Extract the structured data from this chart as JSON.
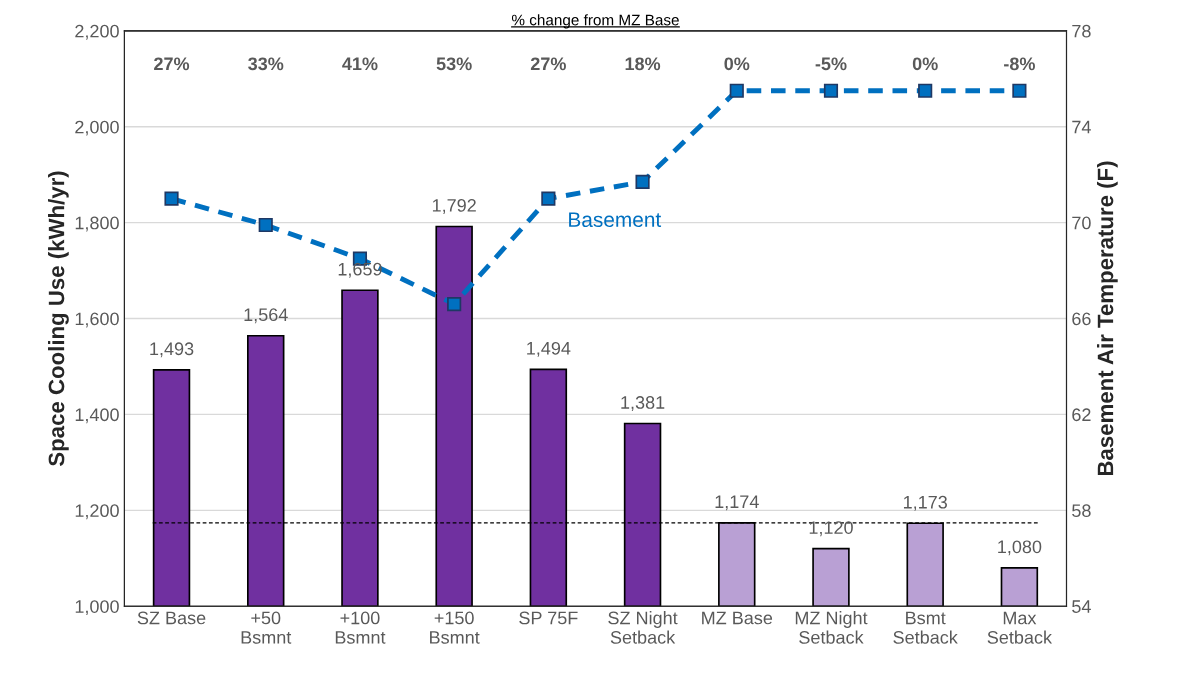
{
  "chart_data": {
    "type": "bar",
    "title": "% change from MZ Base",
    "categories": [
      "SZ Base",
      "+50\nBsmnt",
      "+100\nBsmnt",
      "+150\nBsmnt",
      "SP 75F",
      "SZ Night\nSetback",
      "MZ Base",
      "MZ Night\nSetback",
      "Bsmt\nSetback",
      "Max\nSetback"
    ],
    "series": [
      {
        "colors": [
          "#7030a0",
          "#7030a0",
          "#7030a0",
          "#7030a0",
          "#7030a0",
          "#7030a0",
          "#b9a0d4",
          "#b9a0d4",
          "#b9a0d4",
          "#b9a0d4"
        ],
        "values": [
          1493,
          1564,
          1659,
          1792,
          1494,
          1381,
          1174,
          1120,
          1173,
          1080
        ],
        "value_labels": [
          "1,493",
          "1,564",
          "1,659",
          "1,792",
          "1,494",
          "1,381",
          "1,174",
          "1,120",
          "1,173",
          "1,080"
        ]
      },
      {
        "type": "line",
        "name": "Basement",
        "axis": "y2",
        "color": "#0070c0",
        "marker": "square",
        "line_style": "dashed",
        "values": [
          71.0,
          69.9,
          68.5,
          66.6,
          71.0,
          71.7,
          75.5,
          75.5,
          75.5,
          75.5
        ]
      }
    ],
    "ylabel": "Space Cooling Use (kWh/yr)",
    "y2label": "Basement Air Temperature (F)",
    "ylim": [
      1000,
      2200
    ],
    "yticks": [
      {
        "value": 1000,
        "label": "1,000"
      },
      {
        "value": 1200,
        "label": "1,200"
      },
      {
        "value": 1400,
        "label": "1,400"
      },
      {
        "value": 1600,
        "label": "1,600"
      },
      {
        "value": 1800,
        "label": "1,800"
      },
      {
        "value": 2000,
        "label": "2,000"
      },
      {
        "value": 2200,
        "label": "2,200"
      }
    ],
    "y2lim": [
      54,
      78
    ],
    "y2ticks": [
      54,
      58,
      62,
      66,
      70,
      74,
      78
    ],
    "ref_lines": [
      {
        "axis": "y",
        "value": 1174,
        "color": "#000000",
        "line_style": "dashed"
      }
    ],
    "grid": "y",
    "legend": false,
    "annotations": [
      "27%",
      "33%",
      "41%",
      "53%",
      "27%",
      "18%",
      "0%",
      "-5%",
      "0%",
      "-8%"
    ]
  }
}
